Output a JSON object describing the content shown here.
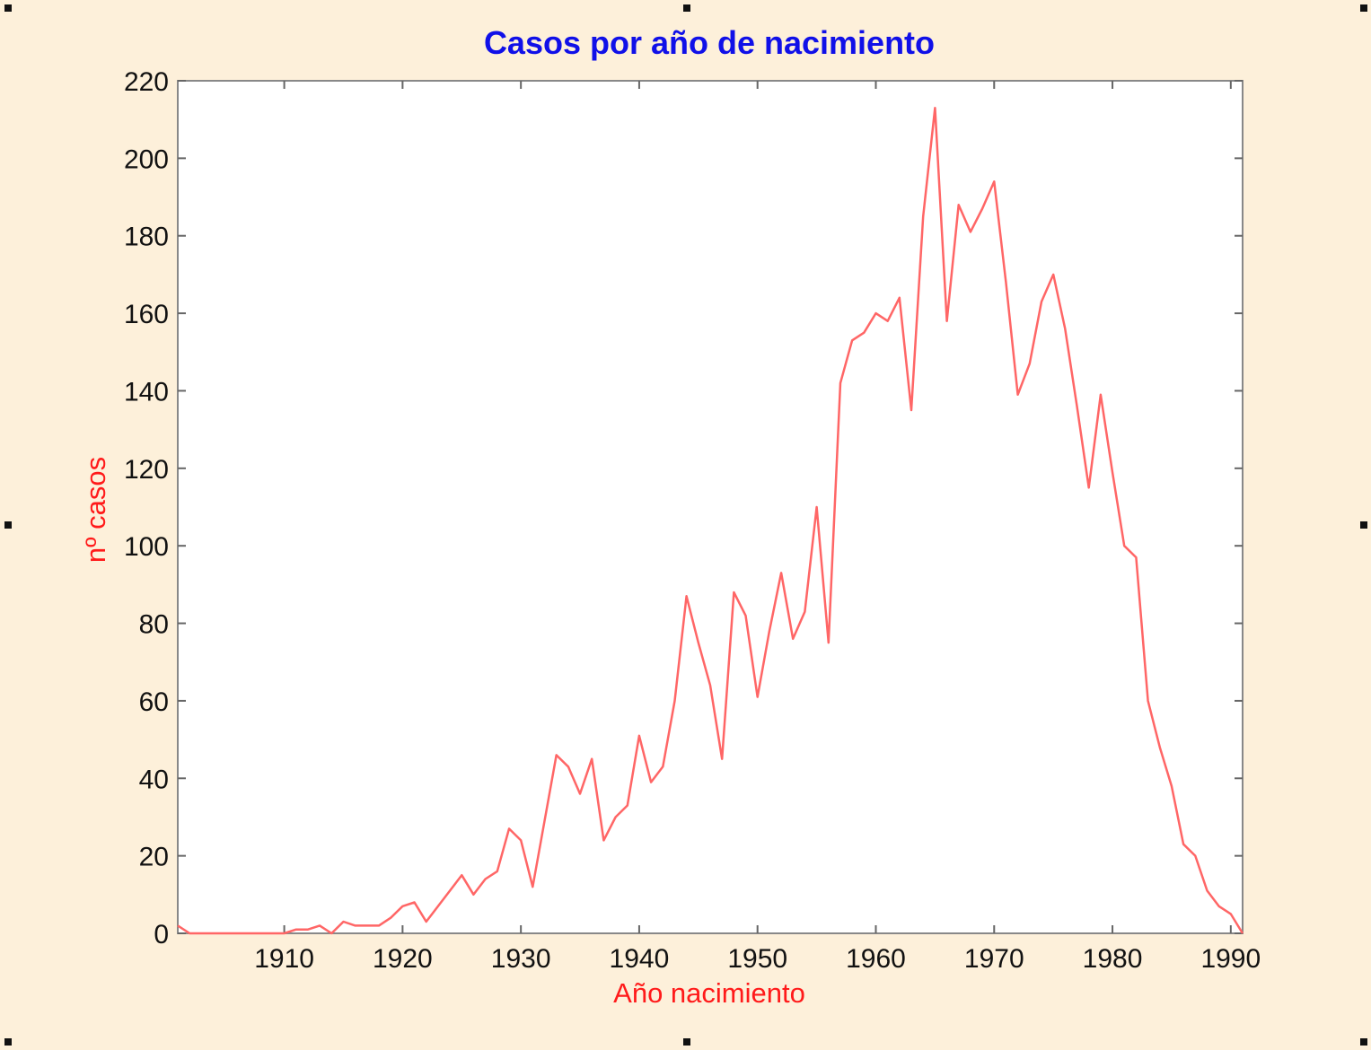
{
  "chart_data": {
    "type": "line",
    "title": "Casos por año de nacimiento",
    "xlabel": "Año nacimiento",
    "ylabel": "nº casos",
    "xlim": [
      1901,
      1991
    ],
    "ylim": [
      0,
      220
    ],
    "x_ticks": [
      1910,
      1920,
      1930,
      1940,
      1950,
      1960,
      1970,
      1980,
      1990
    ],
    "y_ticks": [
      0,
      20,
      40,
      60,
      80,
      100,
      120,
      140,
      160,
      180,
      200,
      220
    ],
    "grid": false,
    "colors": {
      "title": "#1010e8",
      "labels": "#ff1a1a",
      "line": "#ff6666",
      "background": "#fdf0da",
      "plot": "#ffffff"
    },
    "series": [
      {
        "x": [
          1901,
          1902,
          1903,
          1904,
          1905,
          1906,
          1907,
          1908,
          1909,
          1910,
          1911,
          1912,
          1913,
          1914,
          1915,
          1916,
          1917,
          1918,
          1919,
          1920,
          1921,
          1922,
          1923,
          1924,
          1925,
          1926,
          1927,
          1928,
          1929,
          1930,
          1931,
          1932,
          1933,
          1934,
          1935,
          1936,
          1937,
          1938,
          1939,
          1940,
          1941,
          1942,
          1943,
          1944,
          1945,
          1946,
          1947,
          1948,
          1949,
          1950,
          1951,
          1952,
          1953,
          1954,
          1955,
          1956,
          1957,
          1958,
          1959,
          1960,
          1961,
          1962,
          1963,
          1964,
          1965,
          1966,
          1967,
          1968,
          1969,
          1970,
          1971,
          1972,
          1973,
          1974,
          1975,
          1976,
          1977,
          1978,
          1979,
          1980,
          1981,
          1982,
          1983,
          1984,
          1985,
          1986,
          1987,
          1988,
          1989,
          1990,
          1991
        ],
        "values": [
          2,
          0,
          0,
          0,
          0,
          0,
          0,
          0,
          0,
          0,
          1,
          1,
          2,
          0,
          3,
          2,
          2,
          2,
          4,
          7,
          8,
          3,
          7,
          11,
          15,
          10,
          14,
          16,
          27,
          24,
          12,
          29,
          46,
          43,
          36,
          45,
          24,
          30,
          33,
          51,
          39,
          43,
          60,
          87,
          75,
          64,
          45,
          88,
          82,
          61,
          78,
          93,
          76,
          83,
          110,
          75,
          142,
          153,
          155,
          160,
          158,
          164,
          135,
          185,
          213,
          158,
          188,
          181,
          187,
          194,
          168,
          139,
          147,
          163,
          170,
          156,
          136,
          115,
          139,
          119,
          100,
          97,
          60,
          48,
          38,
          23,
          20,
          11,
          7,
          5,
          0
        ]
      }
    ]
  }
}
